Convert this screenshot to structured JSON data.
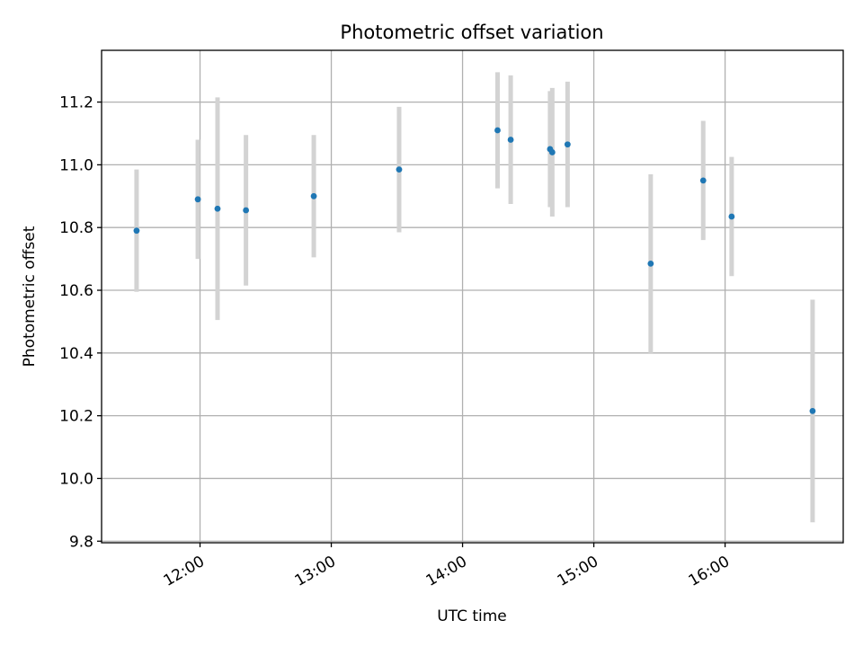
{
  "chart_data": {
    "type": "scatter",
    "title": "Photometric offset variation",
    "xlabel": "UTC time",
    "ylabel": "Photometric offset",
    "xlim": [
      "11:15",
      "16:54"
    ],
    "ylim": [
      9.795,
      11.365
    ],
    "grid": true,
    "x_ticks": [
      "12:00",
      "13:00",
      "14:00",
      "15:00",
      "16:00"
    ],
    "y_ticks": [
      "9.8",
      "10.0",
      "10.2",
      "10.4",
      "10.6",
      "10.8",
      "11.0",
      "11.2"
    ],
    "point_color": "#1f77b4",
    "errorbar_color": "#d3d3d3",
    "series": [
      {
        "points": [
          {
            "x": "11:31",
            "y": 10.79,
            "yerr": 0.195
          },
          {
            "x": "11:59",
            "y": 10.89,
            "yerr": 0.19
          },
          {
            "x": "12:08",
            "y": 10.86,
            "yerr": 0.355
          },
          {
            "x": "12:21",
            "y": 10.855,
            "yerr": 0.24
          },
          {
            "x": "12:52",
            "y": 10.9,
            "yerr": 0.195
          },
          {
            "x": "13:31",
            "y": 10.985,
            "yerr": 0.2
          },
          {
            "x": "14:16",
            "y": 11.11,
            "yerr": 0.185
          },
          {
            "x": "14:22",
            "y": 11.08,
            "yerr": 0.205
          },
          {
            "x": "14:40",
            "y": 11.05,
            "yerr": 0.185
          },
          {
            "x": "14:41",
            "y": 11.04,
            "yerr": 0.205
          },
          {
            "x": "14:48",
            "y": 11.065,
            "yerr": 0.2
          },
          {
            "x": "15:26",
            "y": 10.685,
            "yerr": 0.285
          },
          {
            "x": "15:50",
            "y": 10.95,
            "yerr": 0.19
          },
          {
            "x": "16:03",
            "y": 10.835,
            "yerr": 0.19
          },
          {
            "x": "16:40",
            "y": 10.215,
            "yerr": 0.355
          }
        ]
      }
    ]
  }
}
